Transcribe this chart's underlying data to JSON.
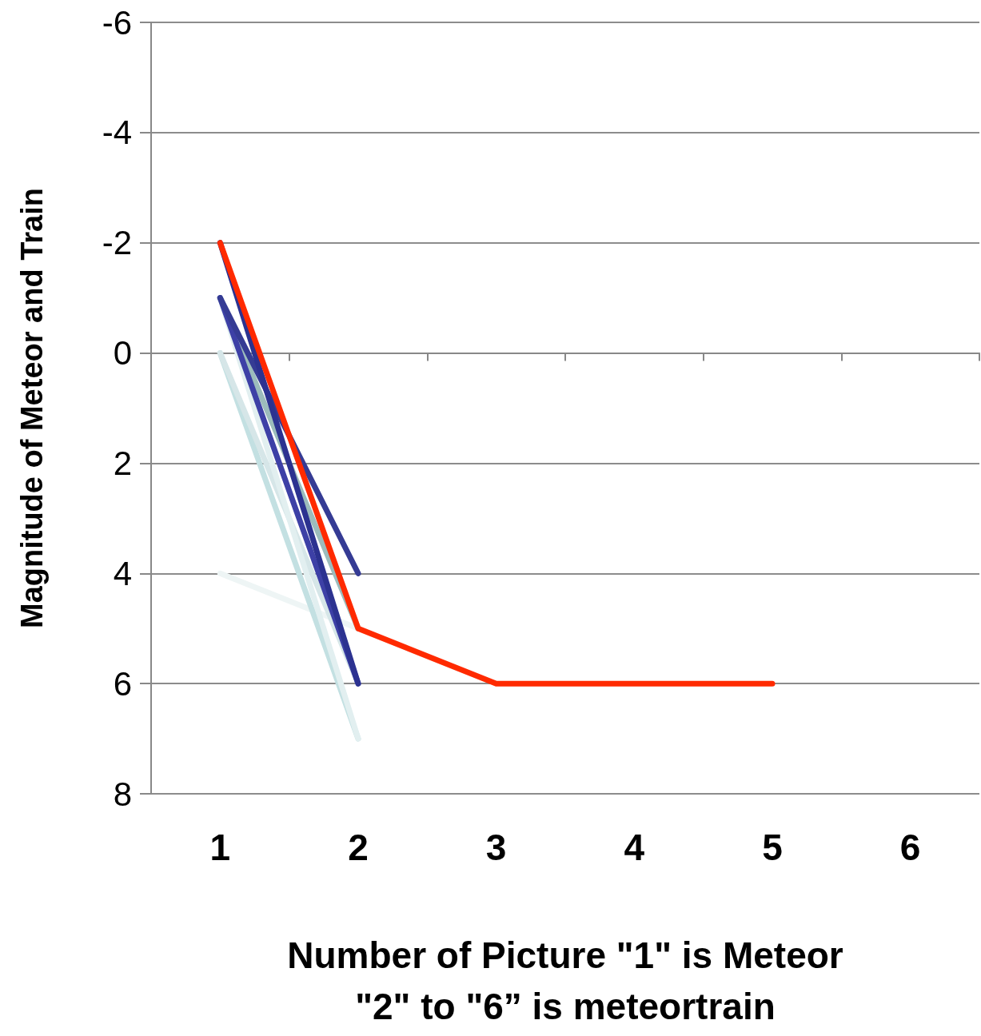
{
  "chart_data": {
    "type": "line",
    "xlabel": "Number of Picture \"1\" is Meteor\n\"2\" to \"6” is meteortrain",
    "ylabel": "Magnitude of Meteor and Train",
    "categories": [
      "1",
      "2",
      "3",
      "4",
      "5",
      "6"
    ],
    "ylim": [
      8,
      -6
    ],
    "yticks": [
      -6,
      -4,
      -2,
      0,
      2,
      4,
      6,
      8
    ],
    "grid": "y",
    "marker": "none",
    "line_style": "solid",
    "series": [
      {
        "color": "#eef5f5",
        "values": [
          4,
          5,
          null,
          null,
          null,
          null
        ]
      },
      {
        "color": "#c3e0e2",
        "values": [
          0,
          7,
          null,
          null,
          null,
          null
        ]
      },
      {
        "color": "#d6e6e8",
        "values": [
          0,
          6,
          null,
          null,
          null,
          null
        ]
      },
      {
        "color": "#e2eff0",
        "values": [
          -1,
          7,
          null,
          null,
          null,
          null
        ]
      },
      {
        "color": "#9cbcbc",
        "values": [
          -1,
          5,
          null,
          null,
          null,
          null
        ]
      },
      {
        "color": "#3d40a6",
        "values": [
          -1,
          6,
          null,
          null,
          null,
          null
        ]
      },
      {
        "color": "#353b94",
        "values": [
          -1,
          4,
          null,
          null,
          null,
          null
        ]
      },
      {
        "color": "#2c3290",
        "values": [
          -2,
          6,
          null,
          null,
          null,
          null
        ]
      },
      {
        "color": "#ff2a00",
        "values": [
          -2,
          5,
          6,
          6,
          6,
          null
        ]
      }
    ]
  }
}
